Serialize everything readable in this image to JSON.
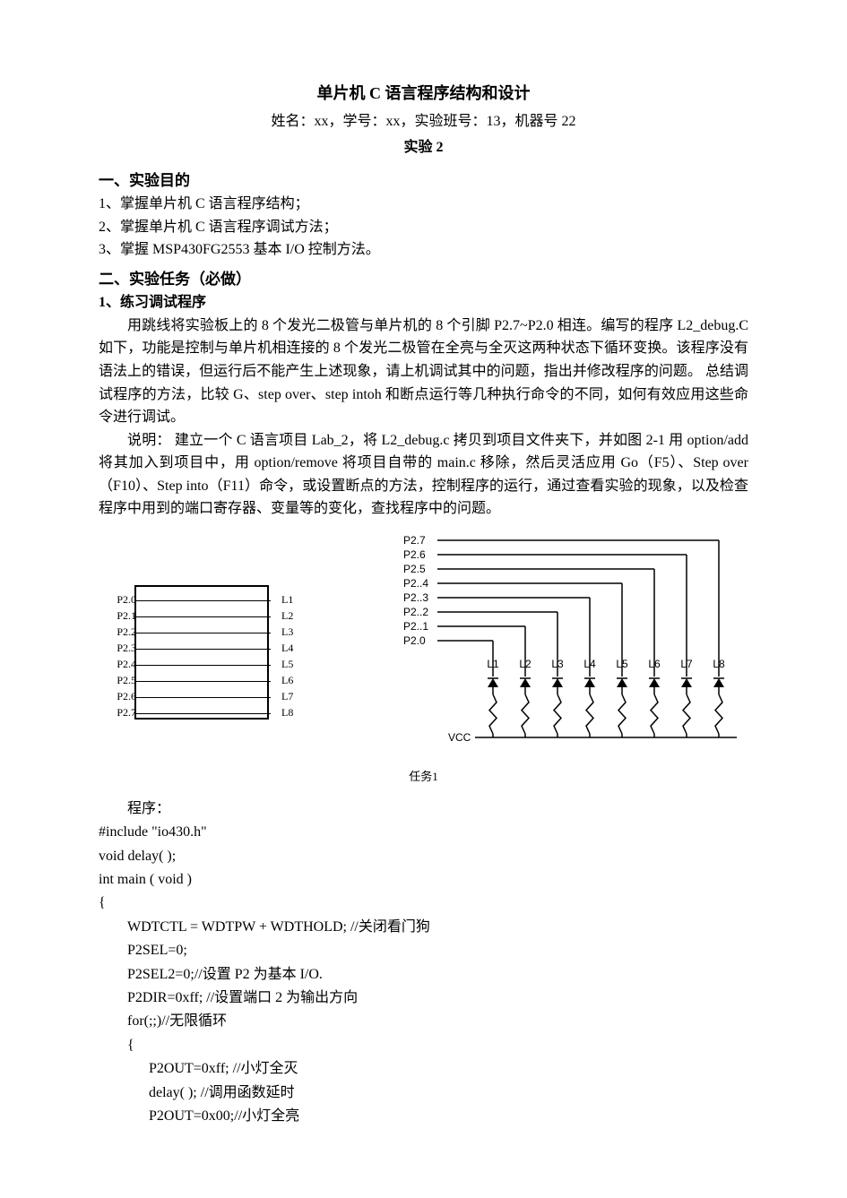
{
  "title": "单片机 C 语言程序结构和设计",
  "subtitle": "姓名：xx，学号：xx，实验班号：13，机器号 22",
  "exp_label": "实验 2",
  "sections": {
    "s1": {
      "head": "一、实验目的",
      "items": [
        "1、掌握单片机 C 语言程序结构；",
        "2、掌握单片机 C 语言程序调试方法；",
        "3、掌握 MSP430FG2553 基本 I/O 控制方法。"
      ]
    },
    "s2": {
      "head": "二、实验任务（必做）",
      "sub1": "1、练习调试程序",
      "p1": "用跳线将实验板上的 8 个发光二极管与单片机的 8 个引脚 P2.7~P2.0 相连。编写的程序 L2_debug.C 如下，功能是控制与单片机相连接的 8 个发光二极管在全亮与全灭这两种状态下循环变换。该程序没有语法上的错误，但运行后不能产生上述现象，请上机调试其中的问题，指出并修改程序的问题。 总结调试程序的方法，比较 G、step over、step intoh 和断点运行等几种执行命令的不同，如何有效应用这些命令进行调试。",
      "p2": "说明：  建立一个 C 语言项目 Lab_2，将 L2_debug.c 拷贝到项目文件夹下，并如图 2-1 用 option/add 将其加入到项目中，用 option/remove 将项目自带的 main.c 移除，然后灵活应用 Go（F5）、Step over（F10）、Step into（F11）命令，或设置断点的方法，控制程序的运行，通过查看实验的现象，以及检查程序中用到的端口寄存器、变量等的变化，查找程序中的问题。"
    }
  },
  "diagram": {
    "left_pins": [
      "P2.0",
      "P2.1",
      "P2.2",
      "P2.3",
      "P2.4",
      "P2.5",
      "P2.6",
      "P2.7"
    ],
    "left_leds": [
      "L1",
      "L2",
      "L3",
      "L4",
      "L5",
      "L6",
      "L7",
      "L8"
    ],
    "right_pins": [
      "P2.7",
      "P2.6",
      "P2.5",
      "P2..4",
      "P2..3",
      "P2..2",
      "P2..1",
      "P2.0"
    ],
    "right_leds": [
      "L1",
      "L2",
      "L3",
      "L4",
      "L5",
      "L6",
      "L7",
      "L8"
    ],
    "vcc": "VCC",
    "caption": "任务1",
    "row_spacing": 18,
    "stroke": "#000000",
    "stroke_width": 1.5,
    "font_size": 12
  },
  "code": {
    "prog_label": "程序：",
    "lines": [
      {
        "t": "#include \"io430.h\"",
        "i": 0
      },
      {
        "t": "void delay( );",
        "i": 0
      },
      {
        "t": "int main ( void )",
        "i": 0
      },
      {
        "t": "{",
        "i": 0
      },
      {
        "t": "WDTCTL = WDTPW + WDTHOLD; //关闭看门狗",
        "i": 1
      },
      {
        "t": "P2SEL=0;",
        "i": 1
      },
      {
        "t": "P2SEL2=0;//设置 P2 为基本 I/O.",
        "i": 1
      },
      {
        "t": "P2DIR=0xff; //设置端口 2 为输出方向",
        "i": 1
      },
      {
        "t": "for(;;)//无限循环",
        "i": 1
      },
      {
        "t": "{",
        "i": 1
      },
      {
        "t": "P2OUT=0xff; //小灯全灭",
        "i": 2
      },
      {
        "t": "delay( ); //调用函数延时",
        "i": 2
      },
      {
        "t": "P2OUT=0x00;//小灯全亮",
        "i": 2
      }
    ]
  }
}
